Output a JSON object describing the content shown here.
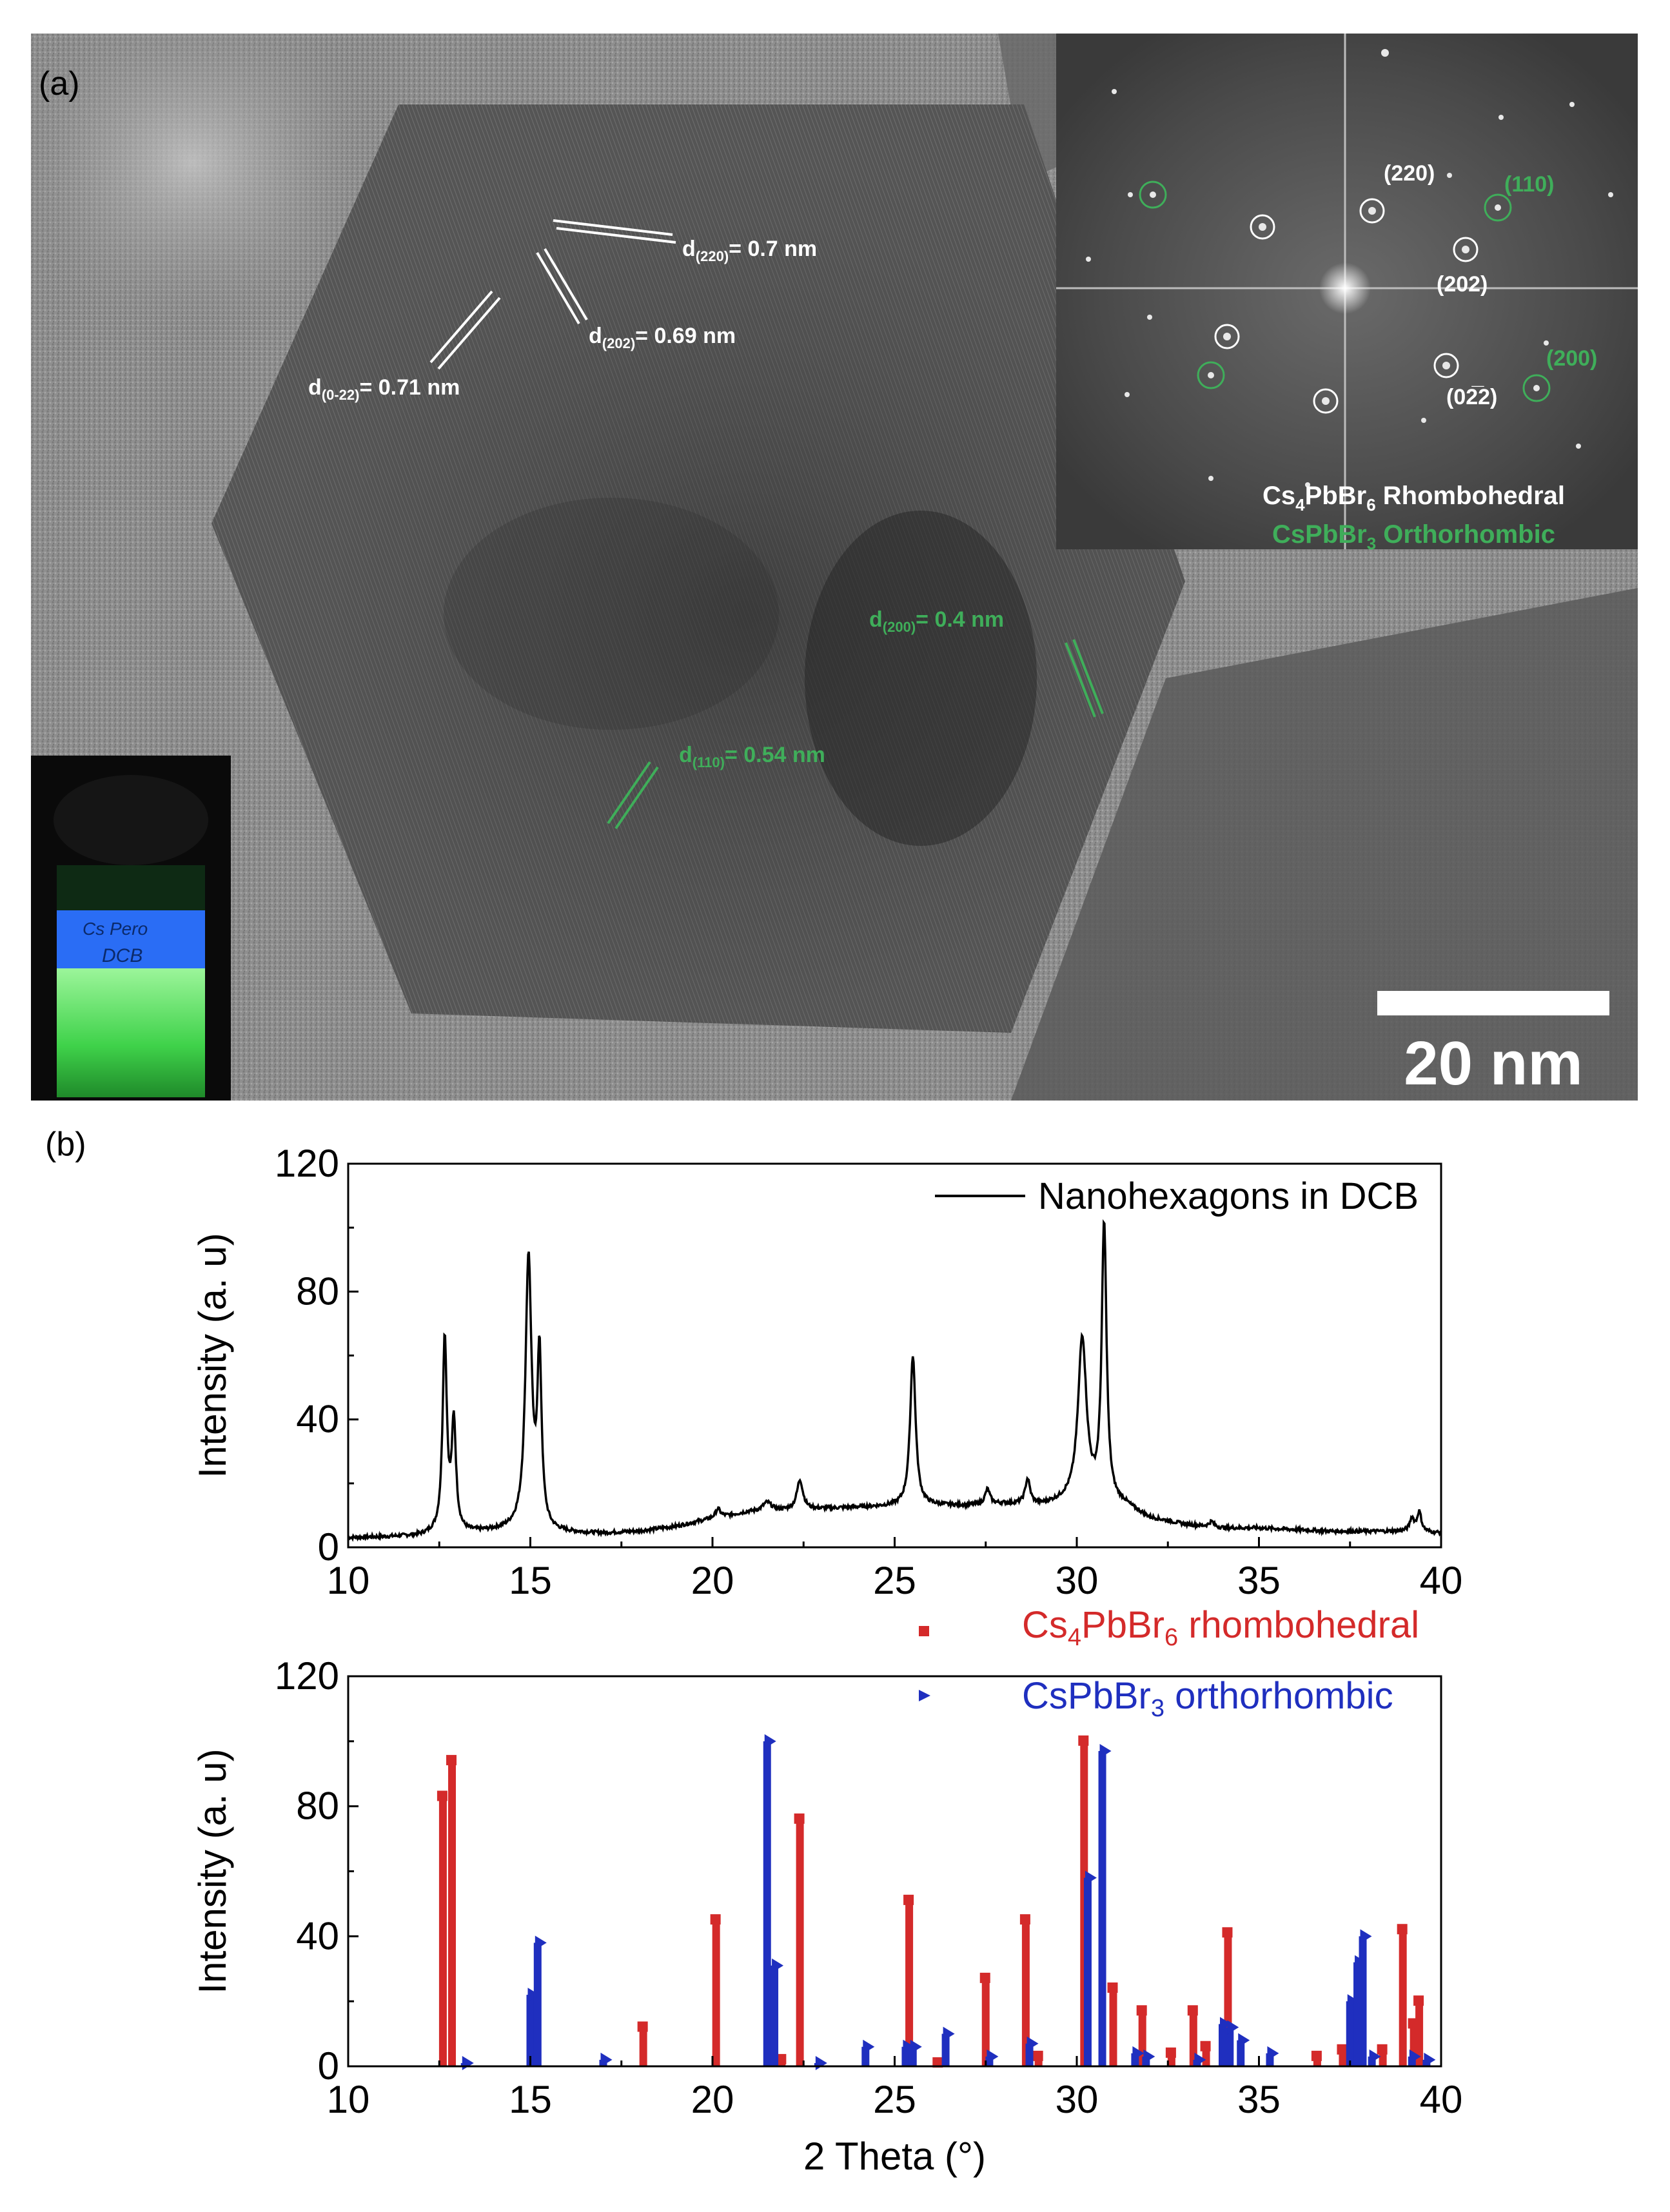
{
  "panel_a": {
    "label": "(a)",
    "annotations": {
      "d220": {
        "main": "d",
        "sub": "(220)",
        "rest": "= 0.7 nm"
      },
      "d202": {
        "main": "d",
        "sub": "(202)",
        "rest": "= 0.69 nm"
      },
      "d022": {
        "main": "d",
        "sub": "(0-22)",
        "rest": "= 0.71 nm"
      },
      "d200": {
        "main": "d",
        "sub": "(200)",
        "rest": "= 0.4 nm"
      },
      "d110": {
        "main": "d",
        "sub": "(110)",
        "rest": "= 0.54 nm"
      }
    },
    "fft_inset": {
      "labels": {
        "p220": "(220)",
        "p110": "(110)",
        "p202": "(202)",
        "p200": "(200)",
        "p022": "(02̅2)"
      },
      "phase1": {
        "prefix": "Cs",
        "sub1": "4",
        "mid": "PbBr",
        "sub2": "6",
        "suffix": " Rhombohedral"
      },
      "phase2": {
        "prefix": "CsPbBr",
        "sub1": "3",
        "suffix": " Orthorhombic"
      }
    },
    "vial_text": {
      "line1": "Cs Pero",
      "line2": "DCB"
    },
    "scale_bar_label": "20 nm",
    "colors": {
      "white_annot": "#ffffff",
      "green_annot": "#3fae5a"
    }
  },
  "panel_b": {
    "label": "(b)"
  },
  "chart_data": [
    {
      "type": "line",
      "title": "",
      "xlabel": "",
      "ylabel": "Intensity (a. u)",
      "xlim": [
        10,
        40
      ],
      "ylim": [
        0,
        120
      ],
      "xticks": [
        10,
        15,
        20,
        25,
        30,
        35,
        40
      ],
      "yticks": [
        0,
        40,
        80,
        120
      ],
      "legend": {
        "placement": "top-right",
        "entries": [
          "Nanohexagons in DCB"
        ]
      },
      "series": [
        {
          "name": "Nanohexagons in DCB",
          "color": "#000000",
          "baseline": [
            [
              10,
              3
            ],
            [
              11,
              3.2
            ],
            [
              12,
              3.6
            ],
            [
              12.4,
              4.2
            ],
            [
              13.3,
              4.5
            ],
            [
              14,
              5
            ],
            [
              14.6,
              5.5
            ],
            [
              15.6,
              4.5
            ],
            [
              17,
              4.3
            ],
            [
              18,
              5
            ],
            [
              19,
              6.5
            ],
            [
              20,
              9
            ],
            [
              21,
              11
            ],
            [
              22,
              11.5
            ],
            [
              23,
              12
            ],
            [
              24,
              12.5
            ],
            [
              25,
              12.8
            ],
            [
              26,
              13
            ],
            [
              27,
              13
            ],
            [
              28,
              13.5
            ],
            [
              29,
              13
            ],
            [
              29.7,
              14
            ],
            [
              31.3,
              13
            ],
            [
              32,
              9
            ],
            [
              33,
              7
            ],
            [
              34,
              6
            ],
            [
              35,
              6
            ],
            [
              36,
              5.5
            ],
            [
              37,
              5
            ],
            [
              38,
              5
            ],
            [
              39,
              5
            ],
            [
              40,
              4.5
            ]
          ],
          "peaks": [
            {
              "x": 12.65,
              "h": 65,
              "w": 0.07
            },
            {
              "x": 12.9,
              "h": 38,
              "w": 0.07
            },
            {
              "x": 14.95,
              "h": 90,
              "w": 0.1
            },
            {
              "x": 15.25,
              "h": 58,
              "w": 0.07
            },
            {
              "x": 20.15,
              "h": 12,
              "w": 0.08
            },
            {
              "x": 21.5,
              "h": 14,
              "w": 0.15
            },
            {
              "x": 22.4,
              "h": 21,
              "w": 0.1
            },
            {
              "x": 25.5,
              "h": 60,
              "w": 0.09
            },
            {
              "x": 27.55,
              "h": 18,
              "w": 0.08
            },
            {
              "x": 28.65,
              "h": 21,
              "w": 0.08
            },
            {
              "x": 30.15,
              "h": 65,
              "w": 0.14
            },
            {
              "x": 30.75,
              "h": 100,
              "w": 0.08
            },
            {
              "x": 33.7,
              "h": 8,
              "w": 0.08
            },
            {
              "x": 39.2,
              "h": 9,
              "w": 0.07
            },
            {
              "x": 39.4,
              "h": 11,
              "w": 0.07
            }
          ]
        }
      ]
    },
    {
      "type": "bar",
      "title": "",
      "xlabel": "2 Theta (°)",
      "ylabel": "Intensity (a. u)",
      "xlim": [
        10,
        40
      ],
      "ylim": [
        0,
        120
      ],
      "xticks": [
        10,
        15,
        20,
        25,
        30,
        35,
        40
      ],
      "yticks": [
        0,
        40,
        80,
        120
      ],
      "legend": {
        "placement": "top-right",
        "entries": [
          "Cs4PbBr6 rhombohedral",
          "CsPbBr3 orthorhombic"
        ]
      },
      "series": [
        {
          "name": "Cs4PbBr6 rhombohedral",
          "legend_parts": {
            "prefix": "Cs",
            "sub1": "4",
            "mid": "PbBr",
            "sub2": "6",
            "suffix": " rhombohedral"
          },
          "color": "#d42a2a",
          "x": [
            12.6,
            12.85,
            18.1,
            20.1,
            21.9,
            22.4,
            25.4,
            26.2,
            27.5,
            28.6,
            28.95,
            30.2,
            31.0,
            31.8,
            32.6,
            33.2,
            33.55,
            34.15,
            36.6,
            37.3,
            38.4,
            38.95,
            39.25,
            39.4
          ],
          "values": [
            83,
            94,
            12,
            45,
            2,
            76,
            51,
            1,
            27,
            45,
            3,
            100,
            24,
            17,
            4,
            17,
            6,
            41,
            3,
            5,
            5,
            42,
            13,
            20
          ]
        },
        {
          "name": "CsPbBr3 orthorhombic",
          "legend_parts": {
            "prefix": "CsPbBr",
            "sub1": "3",
            "suffix": " orthorhombic"
          },
          "color": "#1f2fbf",
          "x": [
            13.2,
            15.0,
            15.2,
            17.0,
            21.5,
            21.7,
            22.9,
            24.2,
            25.3,
            25.5,
            26.4,
            27.6,
            28.7,
            30.3,
            30.7,
            31.6,
            31.9,
            33.3,
            34.0,
            34.2,
            34.5,
            35.3,
            37.5,
            37.7,
            37.85,
            38.1,
            39.2,
            39.6
          ],
          "values": [
            1,
            22,
            38,
            2,
            100,
            31,
            1,
            6,
            6,
            6,
            10,
            3,
            7,
            58,
            97,
            4,
            3,
            2,
            13,
            12,
            8,
            4,
            20,
            32,
            40,
            3,
            3,
            2
          ]
        }
      ]
    }
  ]
}
